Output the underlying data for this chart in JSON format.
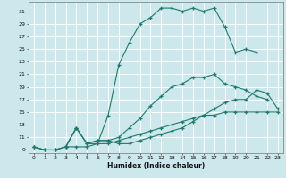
{
  "title": "",
  "xlabel": "Humidex (Indice chaleur)",
  "bg_color": "#cce8ec",
  "grid_color": "#ffffff",
  "line_color": "#1e7a6e",
  "xlim": [
    -0.5,
    23.5
  ],
  "ylim": [
    8.5,
    32.5
  ],
  "xticks": [
    0,
    1,
    2,
    3,
    4,
    5,
    6,
    7,
    8,
    9,
    10,
    11,
    12,
    13,
    14,
    15,
    16,
    17,
    18,
    19,
    20,
    21,
    22,
    23
  ],
  "yticks": [
    9,
    11,
    13,
    15,
    17,
    19,
    21,
    23,
    25,
    27,
    29,
    31
  ],
  "lines": [
    {
      "x": [
        0,
        1,
        2,
        3,
        4,
        5,
        6,
        7,
        8,
        9,
        10,
        11,
        12,
        13,
        14,
        15,
        16,
        17,
        18,
        19,
        20,
        21,
        22,
        23
      ],
      "y": [
        9.5,
        9.0,
        9.0,
        9.5,
        9.5,
        9.5,
        10.0,
        10.0,
        10.5,
        11.0,
        11.5,
        12.0,
        12.5,
        13.0,
        13.5,
        14.0,
        14.5,
        14.5,
        15.0,
        15.0,
        15.0,
        15.0,
        15.0,
        15.0
      ]
    },
    {
      "x": [
        0,
        1,
        2,
        3,
        4,
        5,
        6,
        7,
        8,
        9,
        10,
        11,
        12,
        13,
        14,
        15,
        16,
        17,
        18,
        19,
        20,
        21,
        22
      ],
      "y": [
        9.5,
        9.0,
        9.0,
        9.5,
        12.5,
        10.0,
        10.5,
        10.5,
        11.0,
        12.5,
        14.0,
        16.0,
        17.5,
        19.0,
        19.5,
        20.5,
        20.5,
        21.0,
        19.5,
        19.0,
        18.5,
        17.5,
        17.0
      ]
    },
    {
      "x": [
        0,
        1,
        2,
        3,
        4,
        5,
        6,
        7,
        8,
        9,
        10,
        11,
        12,
        13,
        14,
        15,
        16,
        17,
        18,
        19,
        20,
        21
      ],
      "y": [
        9.5,
        9.0,
        9.0,
        9.5,
        12.5,
        10.0,
        10.0,
        14.5,
        22.5,
        26.0,
        29.0,
        30.0,
        31.5,
        31.5,
        31.0,
        31.5,
        31.0,
        31.5,
        28.5,
        24.5,
        25.0,
        24.5
      ]
    },
    {
      "x": [
        3,
        4,
        5,
        6,
        7,
        8,
        9,
        10,
        11,
        12,
        13,
        14,
        15,
        16,
        17,
        18,
        19,
        20,
        21,
        22,
        23
      ],
      "y": [
        9.5,
        12.5,
        10.0,
        10.5,
        10.5,
        10.0,
        10.0,
        10.5,
        11.0,
        11.5,
        12.0,
        12.5,
        13.5,
        14.5,
        15.5,
        16.5,
        17.0,
        17.0,
        18.5,
        18.0,
        15.5
      ]
    }
  ]
}
